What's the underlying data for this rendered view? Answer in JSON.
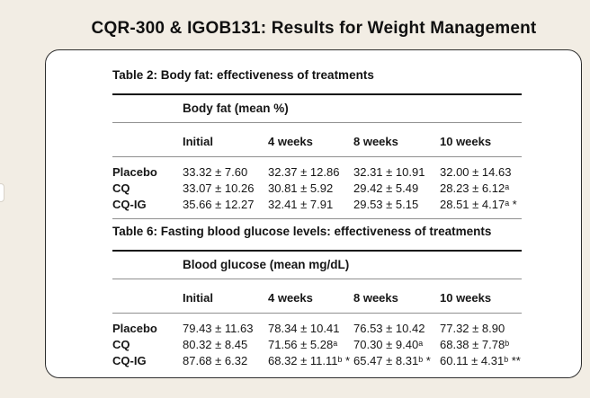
{
  "page": {
    "title": "CQR-300 & IGOB131: Results for Weight Management",
    "background_color": "#f2ede4",
    "panel_color": "#ffffff",
    "panel_border_color": "#2e2e2e",
    "thick_rule_color": "#121212",
    "thin_rule_color": "#8f8f8f"
  },
  "tables": [
    {
      "title": "Table 2: Body fat: effectiveness of treatments",
      "measure_header": "Body fat (mean %)",
      "columns": [
        "Initial",
        "4 weeks",
        "8 weeks",
        "10 weeks"
      ],
      "rows": [
        {
          "label": "Placebo",
          "values": [
            "33.32 ± 7.60",
            "32.37 ± 12.86",
            "32.31 ± 10.91",
            "32.00 ± 14.63"
          ]
        },
        {
          "label": "CQ",
          "values": [
            "33.07 ± 10.26",
            "30.81 ± 5.92",
            "29.42 ± 5.49",
            "28.23 ± 6.12ᵃ"
          ]
        },
        {
          "label": "CQ-IG",
          "values": [
            "35.66 ± 12.27",
            "32.41 ± 7.91",
            "29.53 ± 5.15",
            "28.51 ± 4.17ᵃ *"
          ]
        }
      ]
    },
    {
      "title": "Table 6: Fasting blood glucose levels: effectiveness of treatments",
      "measure_header": "Blood glucose (mean mg/dL)",
      "columns": [
        "Initial",
        "4 weeks",
        "8 weeks",
        "10 weeks"
      ],
      "rows": [
        {
          "label": "Placebo",
          "values": [
            "79.43 ± 11.63",
            "78.34 ± 10.41",
            "76.53 ± 10.42",
            "77.32 ± 8.90"
          ]
        },
        {
          "label": "CQ",
          "values": [
            "80.32 ± 8.45",
            "71.56 ± 5.28ᵃ",
            "70.30 ± 9.40ᵃ",
            "68.38 ± 7.78ᵇ"
          ]
        },
        {
          "label": "CQ-IG",
          "values": [
            "87.68 ± 6.32",
            "68.32 ± 11.11ᵇ *",
            "65.47 ± 8.31ᵇ *",
            "60.11 ± 4.31ᵇ **"
          ]
        }
      ]
    }
  ]
}
